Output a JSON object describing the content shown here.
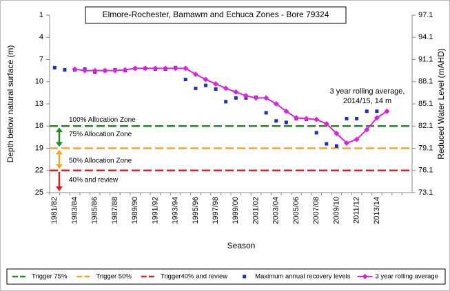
{
  "chart_data": {
    "type": "line",
    "title": "Elmore-Rochester, Bamawm and Echuca Zones - Bore 79324",
    "x_label": "Season",
    "y_label": "Depth below natural surface (m)",
    "y2_label": "Reduced Water Level (mAHD)",
    "annotation": [
      "3 year rolling average,",
      "2014/15, 14 m"
    ],
    "categories": [
      "1981/82",
      null,
      "1983/84",
      null,
      "1985/86",
      null,
      "1987/88",
      null,
      "1989/90",
      null,
      "1991/92",
      null,
      "1993/94",
      null,
      "1995/96",
      null,
      "1997/98",
      null,
      "1999/00",
      null,
      "2001/02",
      null,
      "2003/04",
      null,
      "2005/06",
      null,
      "2007/08",
      null,
      "2009/10",
      null,
      "2011/12",
      null,
      "2013/14",
      null,
      null,
      null
    ],
    "ylim": [
      25,
      1
    ],
    "yticks": [
      1,
      4,
      7,
      10,
      13,
      16,
      19,
      22,
      25
    ],
    "y2lim": [
      73.1,
      97.1
    ],
    "y2ticks": [
      97.1,
      94.1,
      91.1,
      88.1,
      85.1,
      82.1,
      79.1,
      76.1,
      73.1
    ],
    "thresholds": [
      {
        "name": "Trigger 75%",
        "color": "#228b22",
        "value": 16
      },
      {
        "name": "Trigger 50%",
        "color": "#f5a623",
        "value": 19
      },
      {
        "name": "Trigger40% and review",
        "color": "#e02020",
        "value": 22
      }
    ],
    "zones": [
      "100% Allocation Zone",
      "75% Allocation Zone",
      "50% Allocation Zone",
      "40% and review"
    ],
    "series": [
      {
        "name": "Maximum annual recovery levels",
        "color": "#1f2fbf",
        "marker": "square",
        "values": [
          8.1,
          8.4,
          8.4,
          8.3,
          8.7,
          8.5,
          8.4,
          8.5,
          8.2,
          8.2,
          8.3,
          8.3,
          8.1,
          9.7,
          10.9,
          10.5,
          11.0,
          12.7,
          12.2,
          12.2,
          12.1,
          14.2,
          15.3,
          15.5,
          15.0,
          15.1,
          16.9,
          18.4,
          18.7,
          15.0,
          15.0,
          14.0,
          14.0,
          null,
          null,
          null
        ]
      },
      {
        "name": "3 year rolling average",
        "color": "#e020e0",
        "marker": "diamond",
        "values": [
          null,
          null,
          8.3,
          8.5,
          8.5,
          8.5,
          8.5,
          8.4,
          8.2,
          8.2,
          8.2,
          8.2,
          8.2,
          8.2,
          9.0,
          9.7,
          10.3,
          10.9,
          11.4,
          11.9,
          12.2,
          12.2,
          13.0,
          14.0,
          14.9,
          15.0,
          15.1,
          15.7,
          17.0,
          18.3,
          17.8,
          16.5,
          14.9,
          14.0,
          null,
          null
        ]
      }
    ]
  }
}
